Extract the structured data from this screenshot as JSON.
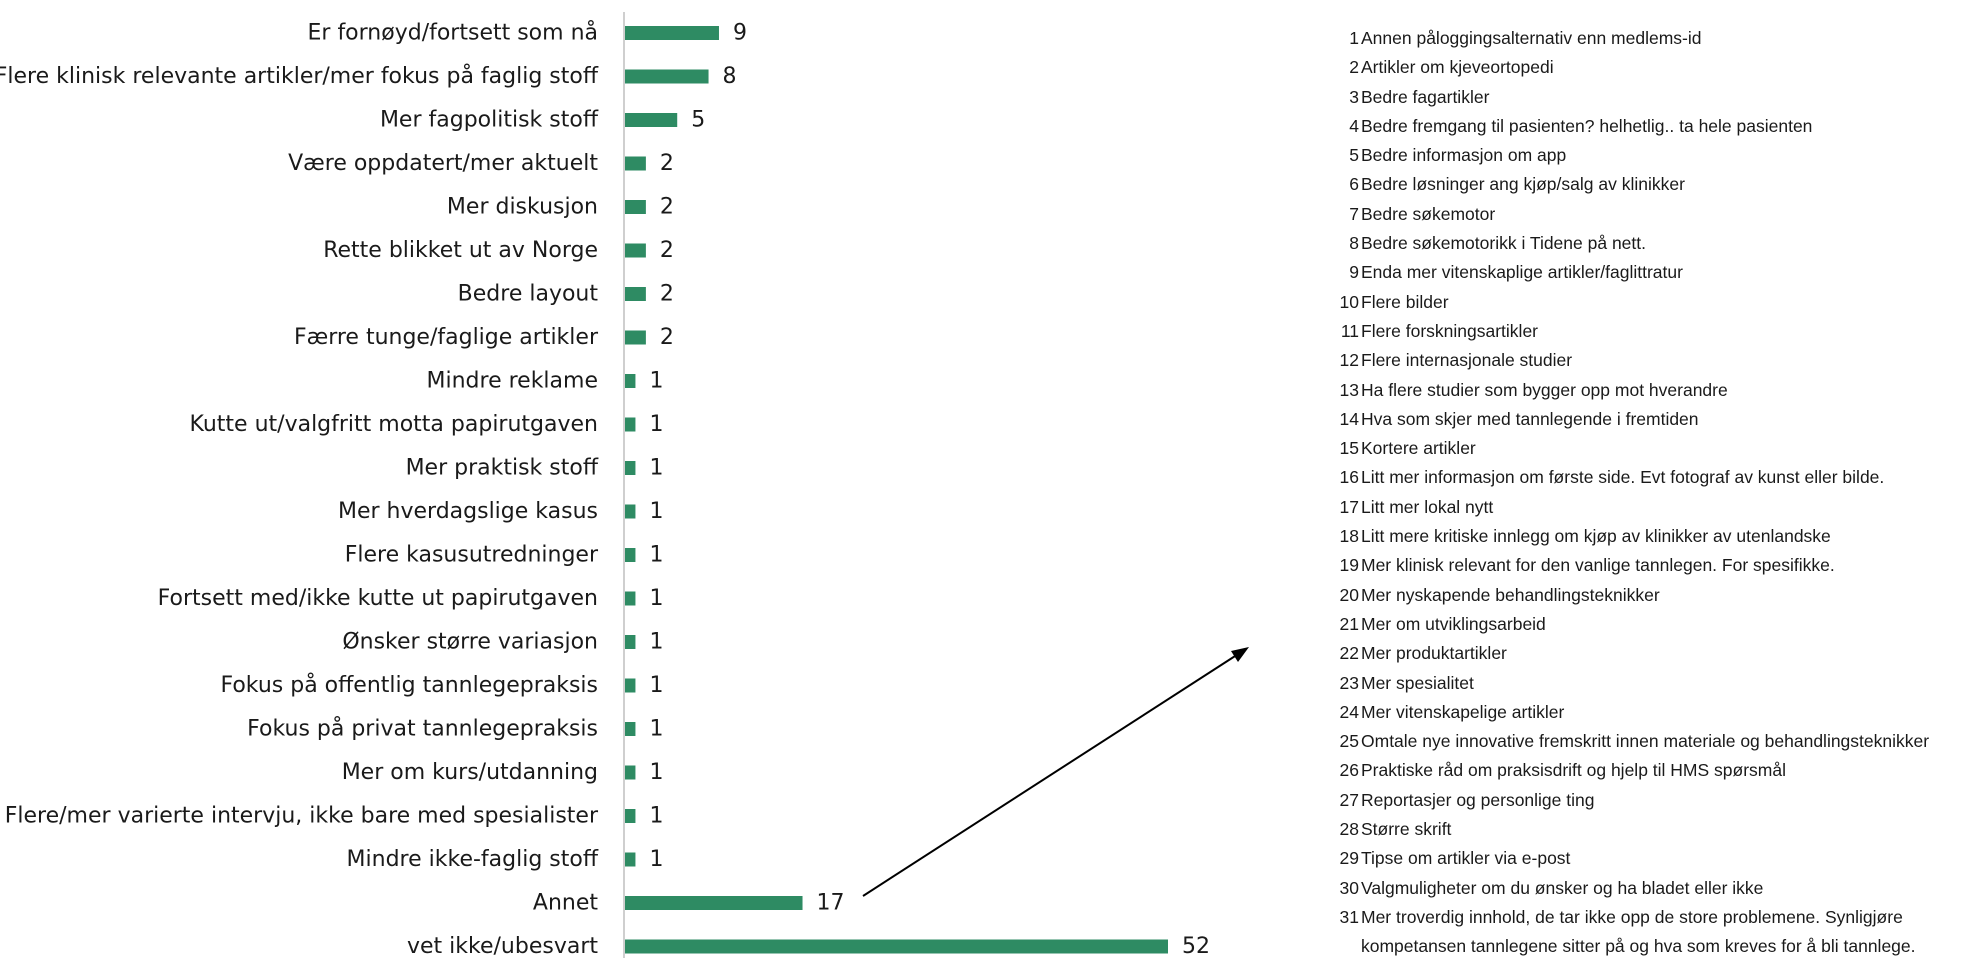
{
  "colors": {
    "bar": "#2e8b63",
    "axis": "#bfbfbf",
    "text": "#1a1a1a"
  },
  "chart_data": {
    "type": "bar",
    "orientation": "horizontal",
    "title": "",
    "xlabel": "",
    "ylabel": "",
    "grid": false,
    "xlim": [
      0,
      52
    ],
    "categories": [
      "Er fornøyd/fortsett som nå",
      "Flere klinisk relevante artikler/mer fokus på faglig stoff",
      "Mer fagpolitisk stoff",
      "Være oppdatert/mer aktuelt",
      "Mer diskusjon",
      "Rette blikket ut av Norge",
      "Bedre layout",
      "Færre tunge/faglige artikler",
      "Mindre reklame",
      "Kutte ut/valgfritt motta papirutgaven",
      "Mer praktisk stoff",
      "Mer hverdagslige kasus",
      "Flere kasusutredninger",
      "Fortsett med/ikke kutte ut papirutgaven",
      "Ønsker større variasjon",
      "Fokus på offentlig tannlegepraksis",
      "Fokus på privat tannlegepraksis",
      "Mer om kurs/utdanning",
      "Flere/mer varierte intervju, ikke bare med spesialister",
      "Mindre ikke-faglig stoff",
      "Annet",
      "vet ikke/ubesvart"
    ],
    "values": [
      9,
      8,
      5,
      2,
      2,
      2,
      2,
      2,
      1,
      1,
      1,
      1,
      1,
      1,
      1,
      1,
      1,
      1,
      1,
      1,
      17,
      52
    ],
    "annotation": "arrow from 'Annet' bar to list of other responses"
  },
  "annet_list": [
    {
      "num": "1",
      "text": "Annen påloggingsalternativ enn medlems-id"
    },
    {
      "num": "2",
      "text": "Artikler om kjeveortopedi"
    },
    {
      "num": "3",
      "text": "Bedre fagartikler"
    },
    {
      "num": "4",
      "text": "Bedre fremgang til pasienten? helhetlig.. ta hele pasienten"
    },
    {
      "num": "5",
      "text": "Bedre informasjon om app"
    },
    {
      "num": "6",
      "text": "Bedre løsninger ang kjøp/salg av klinikker"
    },
    {
      "num": "7",
      "text": "Bedre søkemotor"
    },
    {
      "num": "8",
      "text": "Bedre søkemotorikk i Tidene på nett."
    },
    {
      "num": "9",
      "text": "Enda mer vitenskaplige artikler/faglittratur"
    },
    {
      "num": "10",
      "text": "Flere bilder"
    },
    {
      "num": "11",
      "text": "Flere forskningsartikler"
    },
    {
      "num": "12",
      "text": "Flere internasjonale studier"
    },
    {
      "num": "13",
      "text": "Ha flere studier som bygger opp mot hverandre"
    },
    {
      "num": "14",
      "text": "Hva som skjer med tannlegende i fremtiden"
    },
    {
      "num": "15",
      "text": "Kortere artikler"
    },
    {
      "num": "16",
      "text": "Litt mer informasjon om første side. Evt fotograf av kunst eller bilde."
    },
    {
      "num": "17",
      "text": "Litt mer lokal nytt"
    },
    {
      "num": "18",
      "text": "Litt mere kritiske innlegg om kjøp av klinikker av utenlandske"
    },
    {
      "num": "19",
      "text": "Mer klinisk relevant for den vanlige tannlegen. For spesifikke."
    },
    {
      "num": "20",
      "text": "Mer nyskapende behandlingsteknikker"
    },
    {
      "num": "21",
      "text": "Mer om utviklingsarbeid"
    },
    {
      "num": "22",
      "text": "Mer produktartikler"
    },
    {
      "num": "23",
      "text": "Mer spesialitet"
    },
    {
      "num": "24",
      "text": "Mer vitenskapelige artikler"
    },
    {
      "num": "25",
      "text": "Omtale nye innovative fremskritt innen materiale og behandlingsteknikker"
    },
    {
      "num": "26",
      "text": "Praktiske råd om praksisdrift og hjelp til HMS spørsmål"
    },
    {
      "num": "27",
      "text": "Reportasjer og personlige ting"
    },
    {
      "num": "28",
      "text": "Større skrift"
    },
    {
      "num": "29",
      "text": "Tipse om artikler via e-post"
    },
    {
      "num": "30",
      "text": "Valgmuligheter om du ønsker og ha bladet eller ikke"
    },
    {
      "num": "31",
      "text": "Mer troverdig innhold, de tar ikke opp de store problemene. Synligjøre kompetansen tannlegene sitter på og hva som kreves for å bli tannlege."
    }
  ]
}
